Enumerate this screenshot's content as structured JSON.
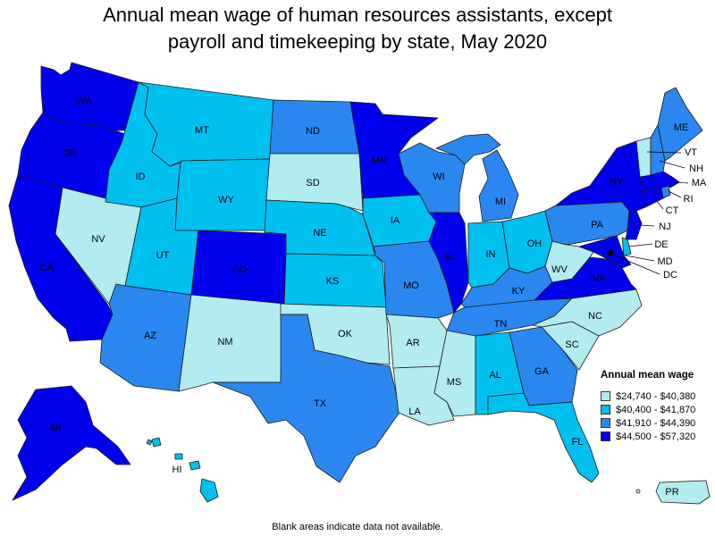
{
  "title_line1": "Annual mean wage of human resources assistants, except",
  "title_line2": "payroll and timekeeping by state, May 2020",
  "footnote": "Blank areas indicate data not available.",
  "legend": {
    "title": "Annual mean wage",
    "items": [
      {
        "label": "$24,740 - $40,380",
        "color": "#b3ecef"
      },
      {
        "label": "$40,400 - $41,870",
        "color": "#00c0f0"
      },
      {
        "label": "$41,910 - $44,390",
        "color": "#2a87f0"
      },
      {
        "label": "$44,500 - $57,320",
        "color": "#0000ee"
      }
    ]
  },
  "states": {
    "WA": 3,
    "OR": 3,
    "CA": 3,
    "NV": 0,
    "ID": 1,
    "MT": 1,
    "WY": 1,
    "UT": 1,
    "AZ": 2,
    "CO": 3,
    "NM": 0,
    "ND": 2,
    "SD": 0,
    "NE": 1,
    "KS": 1,
    "OK": 0,
    "TX": 2,
    "MN": 3,
    "IA": 1,
    "MO": 2,
    "AR": 0,
    "LA": 0,
    "WI": 2,
    "IL": 3,
    "MI": 2,
    "IN": 1,
    "OH": 1,
    "KY": 2,
    "TN": 2,
    "MS": 0,
    "AL": 1,
    "GA": 2,
    "FL": 1,
    "SC": 0,
    "NC": 0,
    "VA": 3,
    "WV": 0,
    "PA": 2,
    "NY": 3,
    "ME": 2,
    "VT": 0,
    "NH": 2,
    "MA": 3,
    "RI": 2,
    "CT": 3,
    "NJ": 3,
    "DE": 1,
    "MD": 3,
    "DC": 3,
    "AK": 3,
    "HI": 1,
    "PR": 0
  }
}
